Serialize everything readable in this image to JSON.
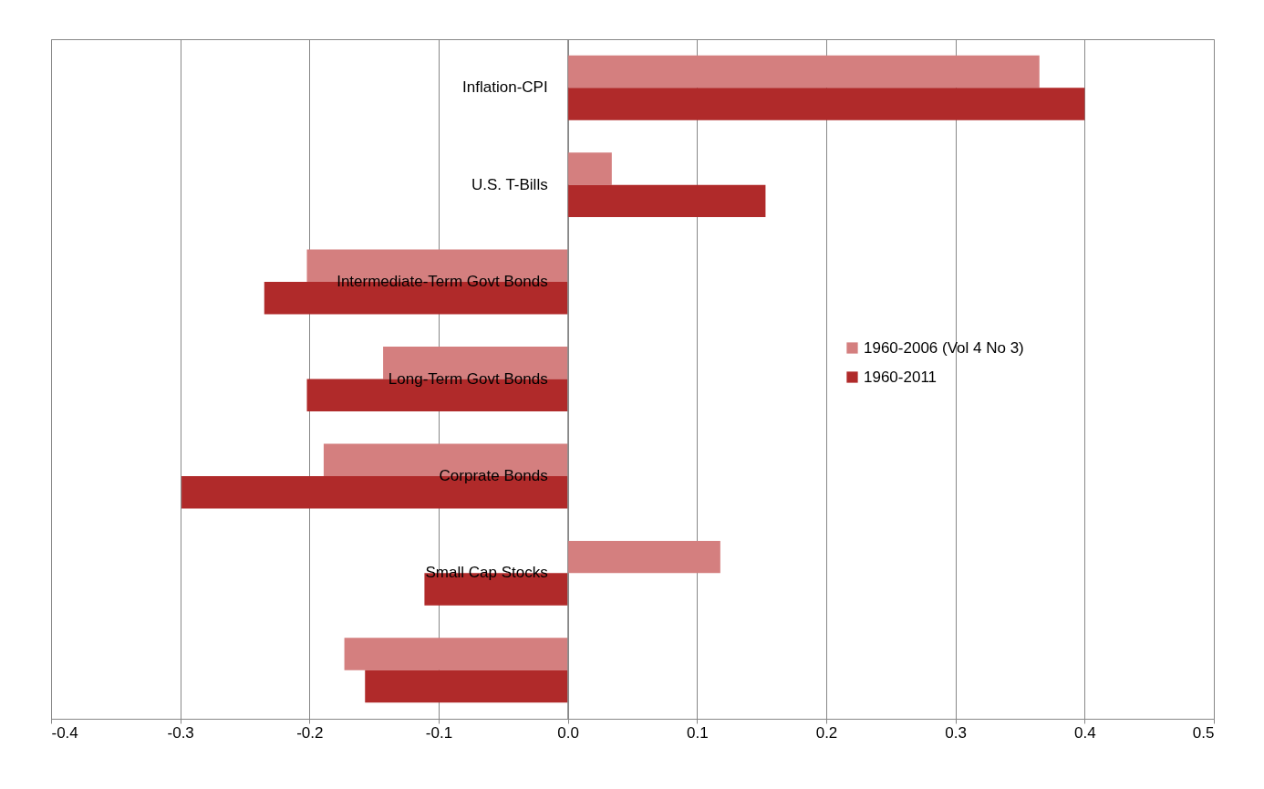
{
  "chart_data": {
    "type": "bar",
    "orientation": "horizontal",
    "categories": [
      "Inflation-CPI",
      "U.S. T-Bills",
      "Intermediate-Term Govt Bonds",
      "Long-Term Govt Bonds",
      "Corprate Bonds",
      "Small Cap Stocks",
      null
    ],
    "series": [
      {
        "name": "1960-2006  (Vol 4 No 3)",
        "color": "#d47f7f",
        "values": [
          0.365,
          0.034,
          -0.202,
          -0.143,
          -0.189,
          0.118,
          -0.173
        ]
      },
      {
        "name": "1960-2011",
        "color": "#b02a2a",
        "values": [
          0.4,
          0.153,
          -0.235,
          -0.202,
          -0.299,
          -0.111,
          -0.157
        ]
      }
    ],
    "xlim": [
      -0.4,
      0.5
    ],
    "xticks": [
      {
        "value": -0.4,
        "label": "-0.4"
      },
      {
        "value": -0.3,
        "label": "-0.3"
      },
      {
        "value": -0.2,
        "label": "-0.2"
      },
      {
        "value": -0.1,
        "label": "-0.1"
      },
      {
        "value": 0,
        "label": "0.0"
      },
      {
        "value": 0.1,
        "label": "0.1"
      },
      {
        "value": 0.2,
        "label": "0.2"
      },
      {
        "value": 0.3,
        "label": "0.3"
      },
      {
        "value": 0.4,
        "label": "0.4"
      },
      {
        "value": 0.5,
        "label": "0.5"
      }
    ],
    "grid": "x",
    "legend": "right"
  }
}
